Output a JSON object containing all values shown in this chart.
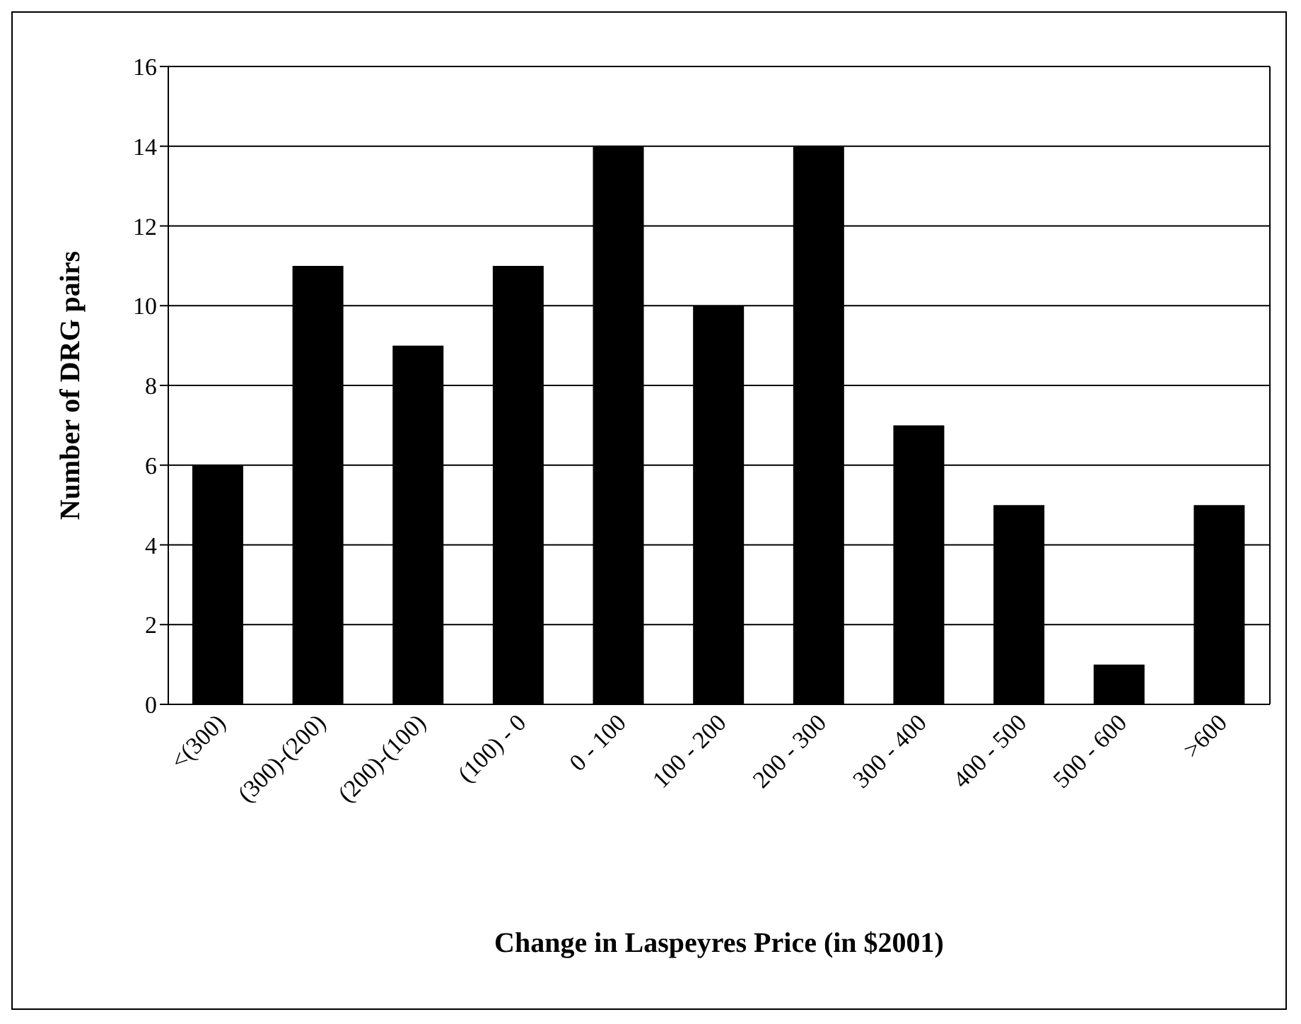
{
  "chart_data": {
    "type": "bar",
    "xlabel": "Change in Laspeyres Price (in $2001)",
    "ylabel": "Number of DRG pairs",
    "categories": [
      "<(300)",
      "(300)-(200)",
      "(200)-(100)",
      "(100) - 0",
      "0 - 100",
      "100 - 200",
      "200 - 300",
      "300 - 400",
      "400 - 500",
      "500 - 600",
      ">600"
    ],
    "values": [
      6,
      11,
      9,
      11,
      14,
      10,
      14,
      7,
      5,
      1,
      5
    ],
    "color": "#000000",
    "ylim": [
      0,
      16
    ],
    "yticks": [
      0,
      2,
      4,
      6,
      8,
      10,
      12,
      14,
      16
    ],
    "grid": "y",
    "legend": false
  }
}
